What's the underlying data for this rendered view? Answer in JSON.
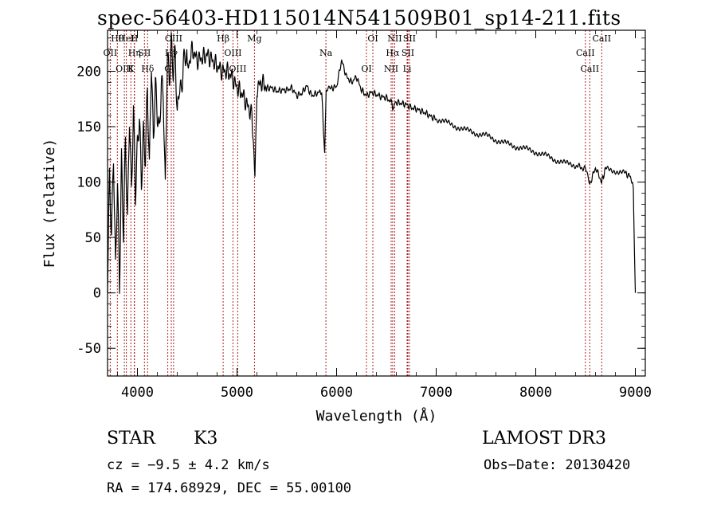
{
  "chart_data": {
    "type": "line",
    "title": "spec-56403-HD115014N541509B01_sp14-211.fits",
    "xlabel": "Wavelength (Å)",
    "ylabel": "Flux (relative)",
    "xlim": [
      3700,
      9100
    ],
    "ylim": [
      -75,
      237
    ],
    "x_ticks": [
      4000,
      5000,
      6000,
      7000,
      8000,
      9000
    ],
    "y_ticks": [
      -50,
      0,
      50,
      100,
      150,
      200
    ],
    "series": [
      {
        "name": "flux",
        "x": [
          3700,
          3720,
          3740,
          3760,
          3780,
          3800,
          3820,
          3840,
          3860,
          3880,
          3900,
          3920,
          3940,
          3960,
          3980,
          4000,
          4020,
          4040,
          4060,
          4080,
          4100,
          4120,
          4140,
          4160,
          4180,
          4200,
          4220,
          4240,
          4260,
          4280,
          4300,
          4320,
          4340,
          4360,
          4380,
          4400,
          4420,
          4440,
          4460,
          4480,
          4500,
          4550,
          4600,
          4650,
          4700,
          4750,
          4800,
          4850,
          4900,
          4950,
          5000,
          5050,
          5100,
          5150,
          5180,
          5200,
          5250,
          5300,
          5350,
          5400,
          5450,
          5500,
          5550,
          5600,
          5650,
          5700,
          5750,
          5800,
          5850,
          5880,
          5895,
          5910,
          5950,
          6000,
          6050,
          6100,
          6150,
          6200,
          6250,
          6300,
          6350,
          6400,
          6450,
          6500,
          6550,
          6563,
          6580,
          6600,
          6650,
          6700,
          6750,
          6800,
          6850,
          6900,
          6950,
          7000,
          7100,
          7200,
          7300,
          7400,
          7500,
          7600,
          7700,
          7800,
          7900,
          8000,
          8100,
          8200,
          8300,
          8400,
          8498,
          8542,
          8600,
          8662,
          8700,
          8800,
          8900,
          8950,
          8980,
          8990,
          9000
        ],
        "y": [
          5,
          95,
          40,
          120,
          20,
          110,
          15,
          130,
          60,
          140,
          55,
          150,
          80,
          160,
          90,
          140,
          170,
          110,
          150,
          120,
          180,
          100,
          200,
          130,
          190,
          170,
          155,
          200,
          185,
          90,
          210,
          180,
          215,
          195,
          220,
          165,
          200,
          190,
          210,
          215,
          200,
          220,
          210,
          212,
          215,
          210,
          205,
          200,
          200,
          195,
          185,
          180,
          170,
          160,
          105,
          185,
          190,
          185,
          185,
          182,
          183,
          183,
          185,
          178,
          180,
          187,
          178,
          180,
          182,
          125,
          183,
          183,
          185,
          186,
          210,
          195,
          190,
          195,
          183,
          178,
          181,
          179,
          177,
          176,
          172,
          165,
          173,
          172,
          171,
          170,
          167,
          166,
          164,
          162,
          159,
          157,
          154,
          150,
          147,
          144,
          142,
          138,
          135,
          132,
          130,
          127,
          124,
          120,
          117,
          115,
          112,
          98,
          113,
          100,
          112,
          110,
          108,
          105,
          95,
          40,
          0
        ]
      }
    ],
    "lines": [
      {
        "label": "Hθ",
        "wavelength": 3798
      },
      {
        "label": "OII",
        "wavelength": 3727
      },
      {
        "label": "OIII",
        "wavelength": 3869
      },
      {
        "label": "HeI",
        "wavelength": 3889
      },
      {
        "label": "Hη",
        "wavelength": 3970
      },
      {
        "label": "K",
        "wavelength": 3934
      },
      {
        "label": "H",
        "wavelength": 3968
      },
      {
        "label": "SII",
        "wavelength": 4070
      },
      {
        "label": "Hδ",
        "wavelength": 4102
      },
      {
        "label": "OIII",
        "wavelength": 4363
      },
      {
        "label": "Hγ",
        "wavelength": 4340
      },
      {
        "label": "G",
        "wavelength": 4305
      },
      {
        "label": "Hβ",
        "wavelength": 4861
      },
      {
        "label": "OIII",
        "wavelength": 4959
      },
      {
        "label": "OIII",
        "wavelength": 5007
      },
      {
        "label": "Mg",
        "wavelength": 5175
      },
      {
        "label": "Na",
        "wavelength": 5893
      },
      {
        "label": "OI",
        "wavelength": 6300
      },
      {
        "label": "OI",
        "wavelength": 6364
      },
      {
        "label": "Hα",
        "wavelength": 6563
      },
      {
        "label": "NII",
        "wavelength": 6548
      },
      {
        "label": "NII",
        "wavelength": 6583
      },
      {
        "label": "SII",
        "wavelength": 6716
      },
      {
        "label": "Li",
        "wavelength": 6708
      },
      {
        "label": "SII",
        "wavelength": 6731
      },
      {
        "label": "CaII",
        "wavelength": 8498
      },
      {
        "label": "CaII",
        "wavelength": 8542
      },
      {
        "label": "CaII",
        "wavelength": 8662
      }
    ]
  },
  "info": {
    "object_class": "STAR",
    "subclass": "K3",
    "survey": "LAMOST DR3",
    "cz": "cz = −9.5 ± 4.2 km/s",
    "obs_date": "Obs−Date: 20130420",
    "coords": "RA = 174.68929, DEC =  55.00100"
  },
  "colors": {
    "line": "#000000",
    "marker": "#b22222",
    "axis": "#000000"
  }
}
